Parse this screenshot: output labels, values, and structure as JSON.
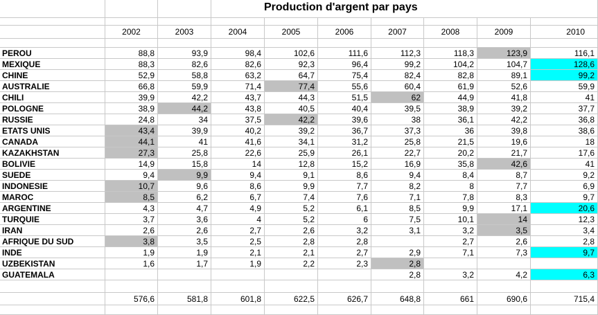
{
  "sheet": {
    "title": "Production d'argent par pays",
    "years": [
      "2002",
      "2003",
      "2004",
      "2005",
      "2006",
      "2007",
      "2008",
      "2009",
      "2010"
    ],
    "rows": [
      {
        "country": "PEROU",
        "values": [
          "88,8",
          "93,9",
          "98,4",
          "102,6",
          "111,6",
          "112,3",
          "118,3",
          "123,9",
          "116,1"
        ],
        "hl": {
          "7": "gray"
        }
      },
      {
        "country": "MEXIQUE",
        "values": [
          "88,3",
          "82,6",
          "82,6",
          "92,3",
          "96,4",
          "99,2",
          "104,2",
          "104,7",
          "128,6"
        ],
        "hl": {
          "8": "cyan"
        }
      },
      {
        "country": "CHINE",
        "values": [
          "52,9",
          "58,8",
          "63,2",
          "64,7",
          "75,4",
          "82,4",
          "82,8",
          "89,1",
          "99,2"
        ],
        "hl": {
          "8": "cyan"
        }
      },
      {
        "country": "AUSTRALIE",
        "values": [
          "66,8",
          "59,9",
          "71,4",
          "77,4",
          "55,6",
          "60,4",
          "61,9",
          "52,6",
          "59,9"
        ],
        "hl": {
          "3": "gray"
        }
      },
      {
        "country": "CHILI",
        "values": [
          "39,9",
          "42,2",
          "43,7",
          "44,3",
          "51,5",
          "62",
          "44,9",
          "41,8",
          "41"
        ],
        "hl": {
          "5": "gray"
        }
      },
      {
        "country": "POLOGNE",
        "values": [
          "38,9",
          "44,2",
          "43,8",
          "40,5",
          "40,4",
          "39,5",
          "38,9",
          "39,2",
          "37,7"
        ],
        "hl": {
          "1": "gray"
        }
      },
      {
        "country": "RUSSIE",
        "values": [
          "24,8",
          "34",
          "37,5",
          "42,2",
          "39,6",
          "38",
          "36,1",
          "42,2",
          "36,8"
        ],
        "hl": {
          "3": "gray"
        }
      },
      {
        "country": "ETATS UNIS",
        "values": [
          "43,4",
          "39,9",
          "40,2",
          "39,2",
          "36,7",
          "37,3",
          "36",
          "39,8",
          "38,6"
        ],
        "hl": {
          "0": "gray"
        }
      },
      {
        "country": "CANADA",
        "values": [
          "44,1",
          "41",
          "41,6",
          "34,1",
          "31,2",
          "25,8",
          "21,5",
          "19,6",
          "18"
        ],
        "hl": {
          "0": "gray"
        }
      },
      {
        "country": "KAZAKHSTAN",
        "values": [
          "27,3",
          "25,8",
          "22,6",
          "25,9",
          "26,1",
          "22,7",
          "20,2",
          "21,7",
          "17,6"
        ],
        "hl": {
          "0": "gray"
        }
      },
      {
        "country": "BOLIVIE",
        "values": [
          "14,9",
          "15,8",
          "14",
          "12,8",
          "15,2",
          "16,9",
          "35,8",
          "42,6",
          "41"
        ],
        "hl": {
          "7": "gray"
        }
      },
      {
        "country": "SUEDE",
        "values": [
          "9,4",
          "9,9",
          "9,4",
          "9,1",
          "8,6",
          "9,4",
          "8,4",
          "8,7",
          "9,2"
        ],
        "hl": {
          "1": "gray"
        }
      },
      {
        "country": "INDONESIE",
        "values": [
          "10,7",
          "9,6",
          "8,6",
          "9,9",
          "7,7",
          "8,2",
          "8",
          "7,7",
          "6,9"
        ],
        "hl": {
          "0": "gray"
        }
      },
      {
        "country": "MAROC",
        "values": [
          "8,5",
          "6,2",
          "6,7",
          "7,4",
          "7,6",
          "7,1",
          "7,8",
          "8,3",
          "9,7"
        ],
        "hl": {
          "0": "gray"
        }
      },
      {
        "country": "ARGENTINE",
        "values": [
          "4,3",
          "4,7",
          "4,9",
          "5,2",
          "6,1",
          "8,5",
          "9,9",
          "17,1",
          "20,6"
        ],
        "hl": {
          "8": "cyan"
        }
      },
      {
        "country": "TURQUIE",
        "values": [
          "3,7",
          "3,6",
          "4",
          "5,2",
          "6",
          "7,5",
          "10,1",
          "14",
          "12,3"
        ],
        "hl": {
          "7": "gray"
        }
      },
      {
        "country": "IRAN",
        "values": [
          "2,6",
          "2,6",
          "2,7",
          "2,6",
          "3,2",
          "3,1",
          "3,2",
          "3,5",
          "3,4"
        ],
        "hl": {
          "7": "gray"
        }
      },
      {
        "country": "AFRIQUE DU SUD",
        "values": [
          "3,8",
          "3,5",
          "2,5",
          "2,8",
          "2,8",
          "",
          "2,7",
          "2,6",
          "2,8"
        ],
        "hl": {
          "0": "gray"
        }
      },
      {
        "country": "INDE",
        "values": [
          "1,9",
          "1,9",
          "2,1",
          "2,1",
          "2,7",
          "2,9",
          "7,1",
          "7,3",
          "9,7"
        ],
        "hl": {
          "8": "cyan"
        }
      },
      {
        "country": "UZBEKISTAN",
        "values": [
          "1,6",
          "1,7",
          "1,9",
          "2,2",
          "2,3",
          "2,8",
          "",
          "",
          ""
        ],
        "hl": {
          "5": "gray"
        }
      },
      {
        "country": "GUATEMALA",
        "values": [
          "",
          "",
          "",
          "",
          "",
          "2,8",
          "3,2",
          "4,2",
          "6,3"
        ],
        "hl": {
          "8": "cyan"
        }
      }
    ],
    "totals": [
      "576,6",
      "581,8",
      "601,8",
      "622,5",
      "626,7",
      "648,8",
      "661",
      "690,6",
      "715,4"
    ]
  }
}
